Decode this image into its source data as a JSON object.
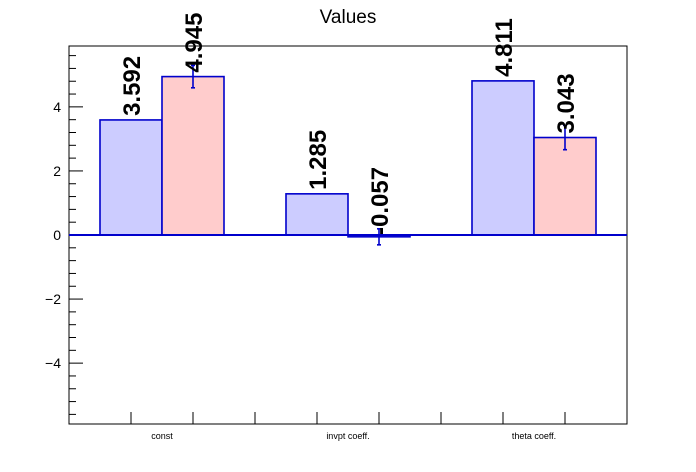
{
  "chart_data": {
    "type": "bar",
    "title": "Values",
    "categories": [
      "const",
      "invpt coeff.",
      "theta coeff."
    ],
    "series": [
      {
        "values": [
          3.592,
          1.285,
          4.811
        ],
        "errors": [
          0,
          0,
          0
        ],
        "labels": [
          "3.592",
          "1.285",
          "4.811"
        ],
        "fill": "#ccccff"
      },
      {
        "values": [
          4.945,
          -0.057,
          3.043
        ],
        "errors": [
          0.35,
          0.25,
          0.38
        ],
        "labels": [
          "4.945",
          "-0.057",
          "3.043"
        ],
        "fill": "#ffcccc"
      }
    ],
    "ylim": [
      -5.9,
      5.9
    ],
    "yticks": [
      -4,
      -2,
      0,
      2,
      4
    ],
    "ytick_labels": [
      "−4",
      "−2",
      "0",
      "2",
      "4"
    ],
    "xlabel": "",
    "ylabel": "",
    "grid": false,
    "bar_edge_color": "#0000cc",
    "axis_color": "#000000",
    "zero_line_color": "#0000cc"
  }
}
